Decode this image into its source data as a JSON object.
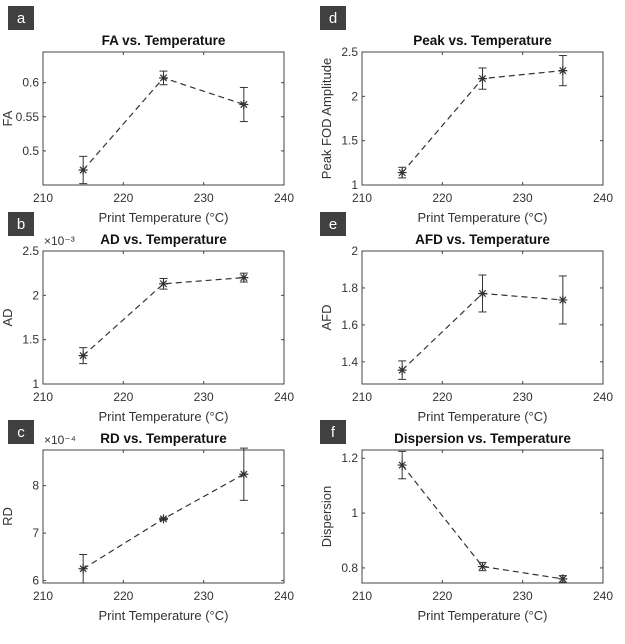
{
  "figure": {
    "colors": {
      "line": "#333333",
      "panel_label_bg": "#404040",
      "panel_label_text": "#ffffff"
    }
  },
  "chart_data": [
    {
      "panel": "a",
      "type": "line",
      "title": "FA vs. Temperature",
      "xlabel": "Print Temperature (°C)",
      "ylabel": "FA",
      "x": [
        215,
        225,
        235
      ],
      "y": [
        0.472,
        0.607,
        0.568
      ],
      "err": [
        0.02,
        0.01,
        0.025
      ],
      "xlim": [
        210,
        240
      ],
      "ylim": [
        0.45,
        0.645
      ],
      "xticks": [
        210,
        220,
        230,
        240
      ],
      "xticklabels": [
        "210",
        "220",
        "230",
        "240"
      ],
      "yticks": [
        0.5,
        0.55,
        0.6
      ],
      "yticklabels": [
        "0.5",
        "0.55",
        "0.6"
      ],
      "exponent": ""
    },
    {
      "panel": "d",
      "type": "line",
      "title": "Peak vs. Temperature",
      "xlabel": "Print Temperature (°C)",
      "ylabel": "Peak FOD Amplitude",
      "x": [
        215,
        225,
        235
      ],
      "y": [
        1.14,
        2.2,
        2.29
      ],
      "err": [
        0.06,
        0.12,
        0.17
      ],
      "xlim": [
        210,
        240
      ],
      "ylim": [
        1.0,
        2.5
      ],
      "xticks": [
        210,
        220,
        230,
        240
      ],
      "xticklabels": [
        "210",
        "220",
        "230",
        "240"
      ],
      "yticks": [
        1,
        1.5,
        2,
        2.5
      ],
      "yticklabels": [
        "1",
        "1.5",
        "2",
        "2.5"
      ],
      "exponent": ""
    },
    {
      "panel": "b",
      "type": "line",
      "title": "AD vs. Temperature",
      "xlabel": "Print Temperature (°C)",
      "ylabel": "AD",
      "x": [
        215,
        225,
        235
      ],
      "y": [
        1.32,
        2.13,
        2.2
      ],
      "err": [
        0.09,
        0.06,
        0.05
      ],
      "xlim": [
        210,
        240
      ],
      "ylim": [
        1.0,
        2.5
      ],
      "xticks": [
        210,
        220,
        230,
        240
      ],
      "xticklabels": [
        "210",
        "220",
        "230",
        "240"
      ],
      "yticks": [
        1,
        1.5,
        2,
        2.5
      ],
      "yticklabels": [
        "1",
        "1.5",
        "2",
        "2.5"
      ],
      "exponent": "×10⁻³"
    },
    {
      "panel": "e",
      "type": "line",
      "title": "AFD vs. Temperature",
      "xlabel": "Print Temperature (°C)",
      "ylabel": "AFD",
      "x": [
        215,
        225,
        235
      ],
      "y": [
        1.355,
        1.77,
        1.735
      ],
      "err": [
        0.05,
        0.1,
        0.13
      ],
      "xlim": [
        210,
        240
      ],
      "ylim": [
        1.28,
        2.0
      ],
      "xticks": [
        210,
        220,
        230,
        240
      ],
      "xticklabels": [
        "210",
        "220",
        "230",
        "240"
      ],
      "yticks": [
        1.4,
        1.6,
        1.8,
        2
      ],
      "yticklabels": [
        "1.4",
        "1.6",
        "1.8",
        "2"
      ],
      "exponent": ""
    },
    {
      "panel": "c",
      "type": "line",
      "title": "RD vs. Temperature",
      "xlabel": "Print Temperature (°C)",
      "ylabel": "RD",
      "x": [
        215,
        225,
        235
      ],
      "y": [
        6.25,
        7.3,
        8.24
      ],
      "err": [
        0.3,
        0.02,
        0.55
      ],
      "xlim": [
        210,
        240
      ],
      "ylim": [
        5.95,
        8.75
      ],
      "xticks": [
        210,
        220,
        230,
        240
      ],
      "xticklabels": [
        "210",
        "220",
        "230",
        "240"
      ],
      "yticks": [
        6,
        7,
        8
      ],
      "yticklabels": [
        "6",
        "7",
        "8"
      ],
      "exponent": "×10⁻⁴"
    },
    {
      "panel": "f",
      "type": "line",
      "title": "Dispersion vs. Temperature",
      "xlabel": "Print Temperature (°C)",
      "ylabel": "Dispersion",
      "x": [
        215,
        225,
        235
      ],
      "y": [
        1.175,
        0.805,
        0.76
      ],
      "err": [
        0.05,
        0.015,
        0.012
      ],
      "xlim": [
        210,
        240
      ],
      "ylim": [
        0.745,
        1.23
      ],
      "xticks": [
        210,
        220,
        230,
        240
      ],
      "xticklabels": [
        "210",
        "220",
        "230",
        "240"
      ],
      "yticks": [
        0.8,
        1,
        1.2
      ],
      "yticklabels": [
        "0.8",
        "1",
        "1.2"
      ],
      "exponent": ""
    }
  ]
}
